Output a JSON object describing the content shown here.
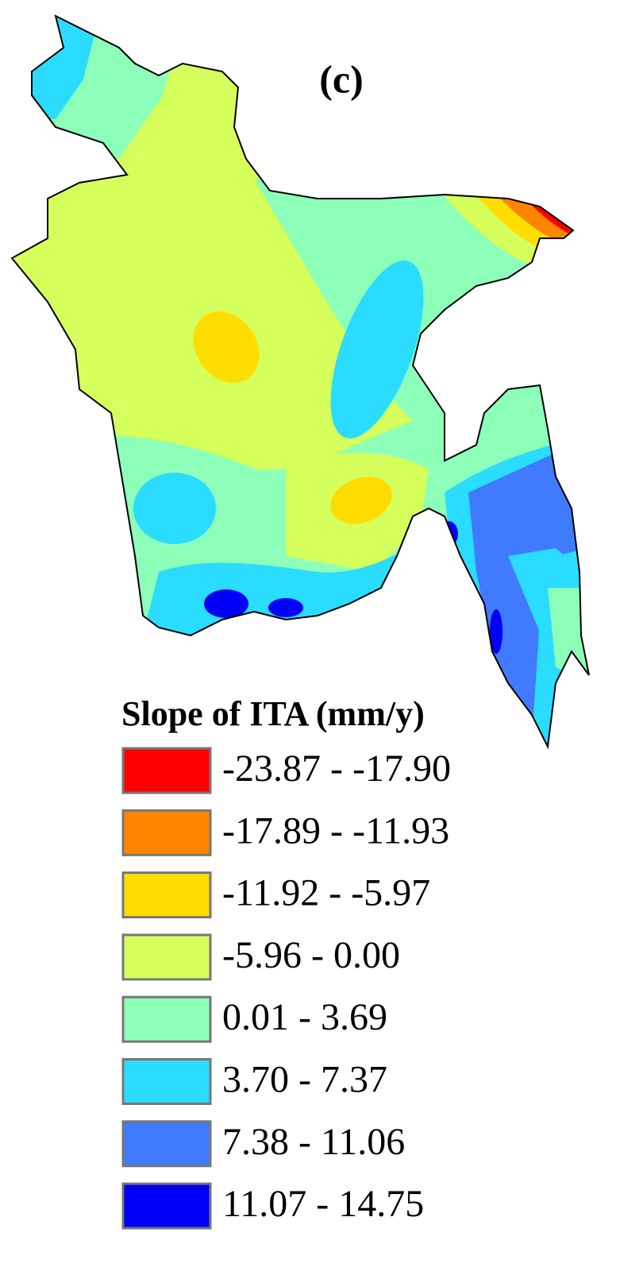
{
  "panel_label": "(c)",
  "legend": {
    "title": "Slope of ITA (mm/y)",
    "items": [
      {
        "label": "-23.87 - -17.90",
        "color": "#ff0000"
      },
      {
        "label": "-17.89 - -11.93",
        "color": "#ff8500"
      },
      {
        "label": "-11.92 - -5.97",
        "color": "#ffdd00"
      },
      {
        "label": "-5.96 - 0.00",
        "color": "#d5ff5a"
      },
      {
        "label": "0.01 - 3.69",
        "color": "#8cffb9"
      },
      {
        "label": "3.70 - 7.37",
        "color": "#2adcff"
      },
      {
        "label": "7.38 - 11.06",
        "color": "#3f7aff"
      },
      {
        "label": "11.07 - 14.75",
        "color": "#0000f5"
      }
    ]
  }
}
